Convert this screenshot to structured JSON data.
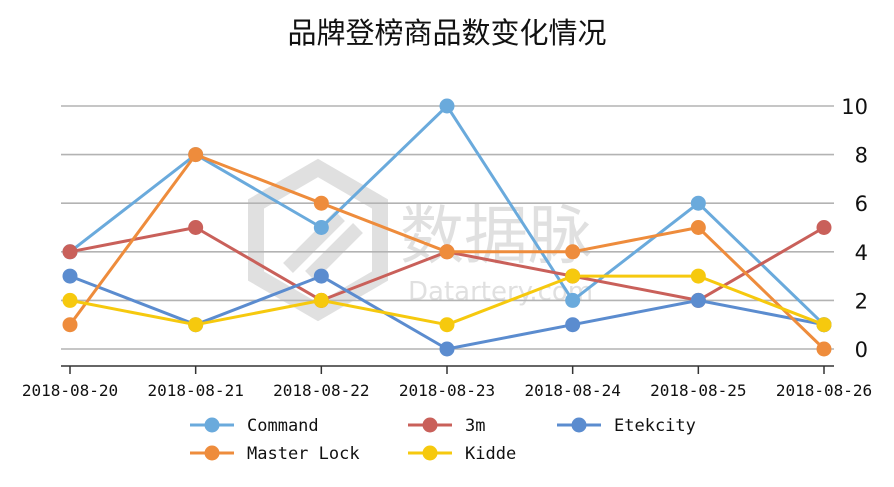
{
  "watermark": {
    "cn": "数据脉",
    "en": "Datartery.com"
  },
  "chart_data": {
    "type": "line",
    "title": "品牌登榜商品数变化情况",
    "xlabel": "",
    "ylabel": "",
    "categories": [
      "2018-08-20",
      "2018-08-21",
      "2018-08-22",
      "2018-08-23",
      "2018-08-24",
      "2018-08-25",
      "2018-08-26"
    ],
    "ylim": [
      0,
      10
    ],
    "yticks": [
      0,
      2,
      4,
      6,
      8,
      10
    ],
    "y_axis_position": "right",
    "grid": "horizontal",
    "legend_position": "bottom",
    "series": [
      {
        "name": "Command",
        "color": "#6aaadc",
        "values": [
          4,
          8,
          5,
          10,
          2,
          6,
          1
        ]
      },
      {
        "name": "3m",
        "color": "#c9605a",
        "values": [
          4,
          5,
          2,
          4,
          3,
          2,
          5
        ]
      },
      {
        "name": "Etekcity",
        "color": "#5b8ccf",
        "values": [
          3,
          1,
          3,
          0,
          1,
          2,
          1
        ]
      },
      {
        "name": "Master Lock",
        "color": "#ee8c3c",
        "values": [
          1,
          8,
          6,
          4,
          4,
          5,
          0
        ]
      },
      {
        "name": "Kidde",
        "color": "#f6c90e",
        "values": [
          2,
          1,
          2,
          1,
          3,
          3,
          1
        ]
      }
    ]
  }
}
